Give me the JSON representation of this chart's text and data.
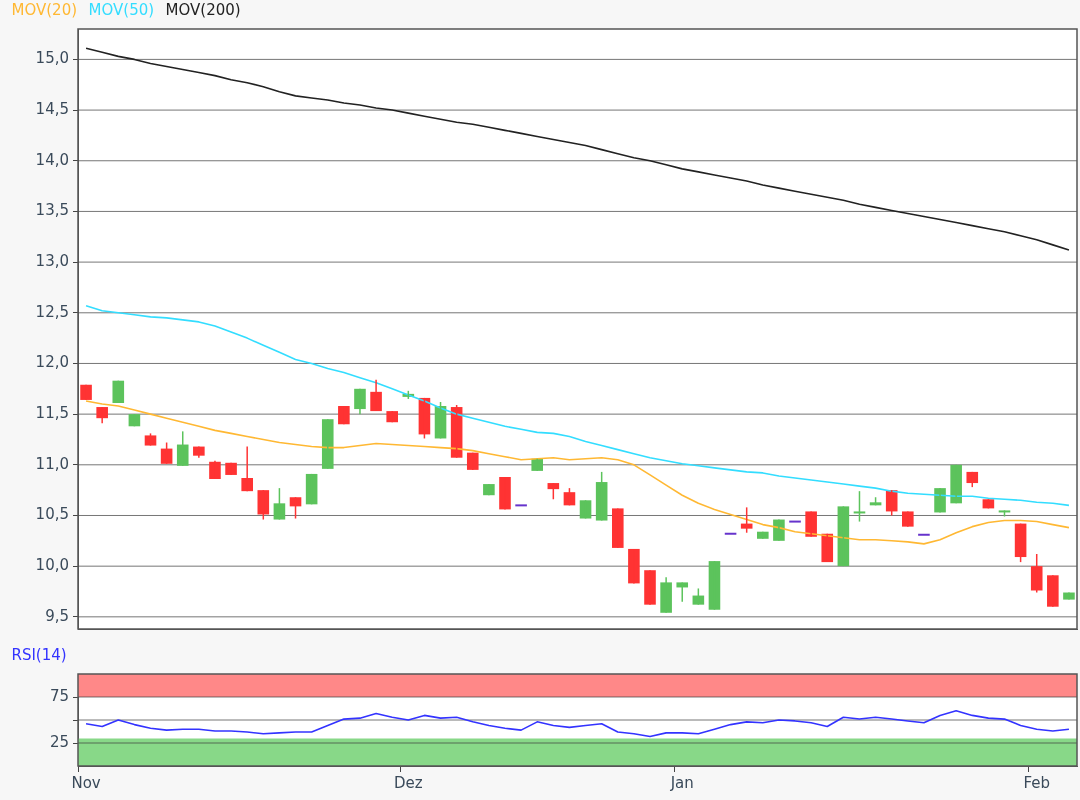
{
  "chart_data": [
    {
      "type": "candlestick",
      "categories": [
        null,
        null,
        null,
        null,
        null,
        null,
        null,
        null,
        null,
        null,
        null,
        null,
        null,
        null,
        null,
        null,
        null,
        null,
        null,
        null,
        null,
        null,
        null,
        null,
        null,
        null,
        null,
        null,
        null,
        null,
        null,
        null,
        null,
        null,
        null,
        null,
        null,
        null,
        null,
        null,
        null,
        null,
        null,
        null,
        null,
        null,
        null,
        null,
        null,
        null,
        null,
        null,
        null,
        null,
        null,
        null,
        null,
        null,
        null,
        null,
        null,
        null
      ],
      "ohlc": [
        [
          11.79,
          11.79,
          11.64,
          11.64
        ],
        [
          11.57,
          11.57,
          11.41,
          11.46
        ],
        [
          11.61,
          11.83,
          11.61,
          11.83
        ],
        [
          11.38,
          11.5,
          11.38,
          11.5
        ],
        [
          11.29,
          11.31,
          11.19,
          11.19
        ],
        [
          11.16,
          11.22,
          11.01,
          11.01
        ],
        [
          10.99,
          11.33,
          10.99,
          11.2
        ],
        [
          11.18,
          11.18,
          11.07,
          11.09
        ],
        [
          11.03,
          11.04,
          10.86,
          10.86
        ],
        [
          11.02,
          11.02,
          10.9,
          10.9
        ],
        [
          10.87,
          11.18,
          10.74,
          10.74
        ],
        [
          10.75,
          10.75,
          10.46,
          10.51
        ],
        [
          10.46,
          10.77,
          10.46,
          10.62
        ],
        [
          10.68,
          10.68,
          10.47,
          10.59
        ],
        [
          10.61,
          10.91,
          10.61,
          10.91
        ],
        [
          10.96,
          11.45,
          10.96,
          11.45
        ],
        [
          11.58,
          11.58,
          11.4,
          11.4
        ],
        [
          11.55,
          11.75,
          11.5,
          11.75
        ],
        [
          11.72,
          11.84,
          11.53,
          11.53
        ],
        [
          11.53,
          11.53,
          11.42,
          11.42
        ],
        [
          11.67,
          11.73,
          11.65,
          11.7
        ],
        [
          11.66,
          11.66,
          11.26,
          11.3
        ],
        [
          11.26,
          11.62,
          11.26,
          11.58
        ],
        [
          11.57,
          11.59,
          11.07,
          11.07
        ],
        [
          11.12,
          11.12,
          10.95,
          10.95
        ],
        [
          10.7,
          10.81,
          10.7,
          10.81
        ],
        [
          10.88,
          10.88,
          10.56,
          10.56
        ],
        [
          10.59,
          10.59,
          10.59,
          10.59
        ],
        [
          10.94,
          11.06,
          10.94,
          11.06
        ],
        [
          10.82,
          10.82,
          10.66,
          10.76
        ],
        [
          10.73,
          10.77,
          10.6,
          10.6
        ],
        [
          10.47,
          10.65,
          10.47,
          10.65
        ],
        [
          10.45,
          10.93,
          10.45,
          10.83
        ],
        [
          10.57,
          10.57,
          10.18,
          10.18
        ],
        [
          10.17,
          10.17,
          9.83,
          9.83
        ],
        [
          9.96,
          9.96,
          9.62,
          9.62
        ],
        [
          9.54,
          9.89,
          9.54,
          9.84
        ],
        [
          9.79,
          9.84,
          9.65,
          9.84
        ],
        [
          9.62,
          9.78,
          9.62,
          9.71
        ],
        [
          9.57,
          10.05,
          9.57,
          10.05
        ],
        [
          10.31,
          10.31,
          10.31,
          10.31
        ],
        [
          10.42,
          10.58,
          10.33,
          10.37
        ],
        [
          10.27,
          10.34,
          10.27,
          10.34
        ],
        [
          10.25,
          10.46,
          10.25,
          10.46
        ],
        [
          10.43,
          10.43,
          10.43,
          10.43
        ],
        [
          10.54,
          10.54,
          10.29,
          10.29
        ],
        [
          10.32,
          10.32,
          10.04,
          10.04
        ],
        [
          10.0,
          10.59,
          10.0,
          10.59
        ],
        [
          10.52,
          10.74,
          10.44,
          10.54
        ],
        [
          10.6,
          10.68,
          10.6,
          10.63
        ],
        [
          10.75,
          10.75,
          10.5,
          10.54
        ],
        [
          10.54,
          10.54,
          10.39,
          10.39
        ],
        [
          10.3,
          10.3,
          10.3,
          10.3
        ],
        [
          10.53,
          10.77,
          10.53,
          10.77
        ],
        [
          10.62,
          11.0,
          10.62,
          11.0
        ],
        [
          10.93,
          10.93,
          10.78,
          10.82
        ],
        [
          10.66,
          10.66,
          10.57,
          10.57
        ],
        [
          10.53,
          10.55,
          10.49,
          10.55
        ],
        [
          10.42,
          10.42,
          10.04,
          10.09
        ],
        [
          10.0,
          10.12,
          9.74,
          9.76
        ],
        [
          9.91,
          9.91,
          9.6,
          9.6
        ],
        [
          9.67,
          9.74,
          9.67,
          9.74
        ]
      ],
      "colors": [
        "#ff3333",
        "#ff3333",
        "#5cc35c",
        "#5cc35c",
        "#ff3333",
        "#ff3333",
        "#5cc35c",
        "#ff3333",
        "#ff3333",
        "#ff3333",
        "#ff3333",
        "#ff3333",
        "#5cc35c",
        "#ff3333",
        "#5cc35c",
        "#5cc35c",
        "#ff3333",
        "#5cc35c",
        "#ff3333",
        "#ff3333",
        "#5cc35c",
        "#ff3333",
        "#5cc35c",
        "#ff3333",
        "#ff3333",
        "#5cc35c",
        "#ff3333",
        "#6633cc",
        "#5cc35c",
        "#ff3333",
        "#ff3333",
        "#5cc35c",
        "#5cc35c",
        "#ff3333",
        "#ff3333",
        "#ff3333",
        "#5cc35c",
        "#5cc35c",
        "#5cc35c",
        "#5cc35c",
        "#6633cc",
        "#ff3333",
        "#5cc35c",
        "#5cc35c",
        "#6633cc",
        "#ff3333",
        "#ff3333",
        "#5cc35c",
        "#5cc35c",
        "#5cc35c",
        "#ff3333",
        "#ff3333",
        "#6633cc",
        "#5cc35c",
        "#5cc35c",
        "#ff3333",
        "#ff3333",
        "#5cc35c",
        "#ff3333",
        "#ff3333",
        "#ff3333",
        "#5cc35c"
      ],
      "series": [
        {
          "name": "MOV(20)",
          "type": "line",
          "color": "#ffb833",
          "values": [
            11.63,
            11.6,
            11.58,
            11.54,
            11.5,
            11.46,
            11.42,
            11.38,
            11.34,
            11.31,
            11.28,
            11.25,
            11.22,
            11.2,
            11.18,
            11.17,
            11.17,
            11.19,
            11.21,
            11.2,
            11.19,
            11.18,
            11.17,
            11.16,
            11.14,
            11.11,
            11.08,
            11.05,
            11.06,
            11.07,
            11.05,
            11.06,
            11.07,
            11.05,
            11.0,
            10.9,
            10.8,
            10.7,
            10.62,
            10.56,
            10.51,
            10.46,
            10.41,
            10.38,
            10.34,
            10.32,
            10.3,
            10.28,
            10.26,
            10.26,
            10.25,
            10.24,
            10.22,
            10.26,
            10.33,
            10.39,
            10.43,
            10.45,
            10.45,
            10.44,
            10.41,
            10.38
          ]
        },
        {
          "name": "MOV(50)",
          "type": "line",
          "color": "#33ddff",
          "values": [
            12.57,
            12.52,
            12.5,
            12.48,
            12.46,
            12.45,
            12.43,
            12.41,
            12.37,
            12.31,
            12.25,
            12.18,
            12.11,
            12.04,
            12.0,
            11.95,
            11.91,
            11.86,
            11.81,
            11.75,
            11.69,
            11.63,
            11.56,
            11.5,
            11.46,
            11.42,
            11.38,
            11.35,
            11.32,
            11.31,
            11.28,
            11.23,
            11.19,
            11.15,
            11.11,
            11.07,
            11.04,
            11.01,
            10.99,
            10.97,
            10.95,
            10.93,
            10.92,
            10.89,
            10.87,
            10.85,
            10.83,
            10.81,
            10.79,
            10.77,
            10.74,
            10.72,
            10.71,
            10.7,
            10.69,
            10.69,
            10.67,
            10.66,
            10.65,
            10.63,
            10.62,
            10.6
          ]
        },
        {
          "name": "MOV(200)",
          "type": "line",
          "color": "#222222",
          "values": [
            15.11,
            15.07,
            15.03,
            15.0,
            14.96,
            14.93,
            14.9,
            14.87,
            14.84,
            14.8,
            14.77,
            14.73,
            14.68,
            14.64,
            14.62,
            14.6,
            14.57,
            14.55,
            14.52,
            14.5,
            14.47,
            14.44,
            14.41,
            14.38,
            14.36,
            14.33,
            14.3,
            14.27,
            14.24,
            14.21,
            14.18,
            14.15,
            14.11,
            14.07,
            14.03,
            14.0,
            13.96,
            13.92,
            13.89,
            13.86,
            13.83,
            13.8,
            13.76,
            13.73,
            13.7,
            13.67,
            13.64,
            13.61,
            13.57,
            13.54,
            13.51,
            13.48,
            13.45,
            13.42,
            13.39,
            13.36,
            13.33,
            13.3,
            13.26,
            13.22,
            13.17,
            13.12
          ]
        }
      ],
      "ylim": [
        9.38,
        15.3
      ],
      "yticks": [
        {
          "value": 9.5,
          "label": "9,5"
        },
        {
          "value": 10.0,
          "label": "10,0"
        },
        {
          "value": 10.5,
          "label": "10,5"
        },
        {
          "value": 11.0,
          "label": "11,0"
        },
        {
          "value": 11.5,
          "label": "11,5"
        },
        {
          "value": 12.0,
          "label": "12,0"
        },
        {
          "value": 12.5,
          "label": "12,5"
        },
        {
          "value": 13.0,
          "label": "13,0"
        },
        {
          "value": 13.5,
          "label": "13,5"
        },
        {
          "value": 14.0,
          "label": "14,0"
        },
        {
          "value": 14.5,
          "label": "14,5"
        },
        {
          "value": 15.0,
          "label": "15,0"
        }
      ],
      "grid": "y",
      "legend": "top left",
      "tick_labels": "y",
      "marker": "none"
    },
    {
      "type": "line",
      "categories": [
        "Nov",
        null,
        null,
        null,
        null,
        null,
        null,
        null,
        null,
        null,
        null,
        null,
        null,
        null,
        null,
        null,
        null,
        null,
        null,
        null,
        "Dez",
        null,
        null,
        null,
        null,
        null,
        null,
        null,
        null,
        null,
        null,
        null,
        null,
        null,
        null,
        null,
        null,
        "Jan",
        null,
        null,
        null,
        null,
        null,
        null,
        null,
        null,
        null,
        null,
        null,
        null,
        null,
        null,
        null,
        null,
        null,
        null,
        null,
        null,
        null,
        "Feb",
        null,
        null
      ],
      "series": [
        {
          "name": "RSI(14)",
          "color": "#3333ff",
          "values": [
            46,
            43,
            50,
            45,
            41,
            39,
            40,
            40,
            38,
            38,
            37,
            35,
            36,
            37,
            37,
            44,
            51,
            52,
            57,
            53,
            50,
            55,
            52,
            53,
            48,
            44,
            41,
            39,
            48,
            44,
            42,
            44,
            46,
            37,
            35,
            32,
            36,
            36,
            35,
            40,
            45,
            48,
            47,
            50,
            49,
            47,
            43,
            53,
            51,
            53,
            51,
            49,
            47,
            55,
            60,
            55,
            52,
            51,
            44,
            40,
            38,
            40
          ]
        }
      ],
      "ylim": [
        0,
        100
      ],
      "yticks": [
        25,
        {
          "value": 50,
          "label": null
        },
        75
      ],
      "bands": [
        {
          "axis": "y",
          "from": 75,
          "to": 100,
          "color": "#ff8888"
        },
        {
          "axis": "y",
          "from": 0,
          "to": 30,
          "color": "#88d888"
        }
      ],
      "grid": "y",
      "legend": "top left",
      "marker": "none"
    }
  ]
}
